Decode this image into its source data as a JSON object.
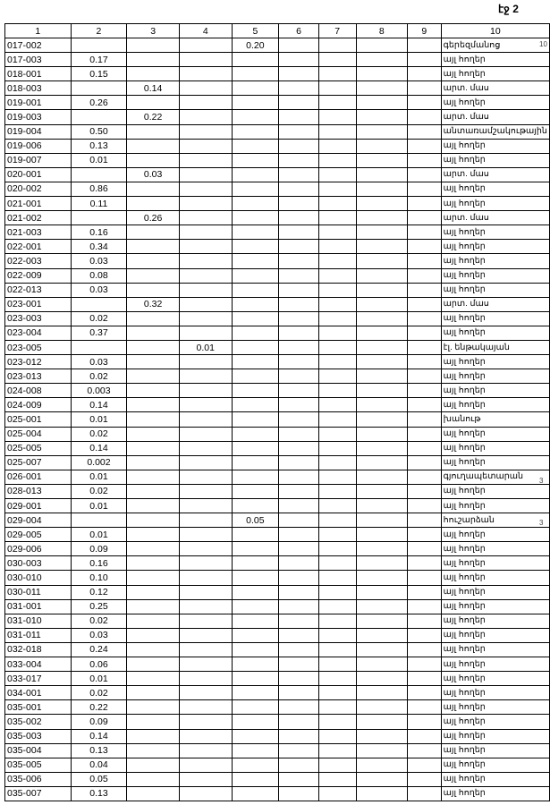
{
  "page_number": "էջ 2",
  "side_marks": [
    "10",
    "3",
    "3"
  ],
  "table": {
    "headers": [
      "1",
      "2",
      "3",
      "4",
      "5",
      "6",
      "7",
      "8",
      "9",
      "10"
    ],
    "rows": [
      [
        "017-002",
        "",
        "",
        "",
        "0.20",
        "",
        "",
        "",
        "",
        "գերեզմանոց"
      ],
      [
        "017-003",
        "0.17",
        "",
        "",
        "",
        "",
        "",
        "",
        "",
        "այլ հողեր"
      ],
      [
        "018-001",
        "0.15",
        "",
        "",
        "",
        "",
        "",
        "",
        "",
        "այլ հողեր"
      ],
      [
        "018-003",
        "",
        "0.14",
        "",
        "",
        "",
        "",
        "",
        "",
        "արտ. մաս"
      ],
      [
        "019-001",
        "0.26",
        "",
        "",
        "",
        "",
        "",
        "",
        "",
        "այլ հողեր"
      ],
      [
        "019-003",
        "",
        "0.22",
        "",
        "",
        "",
        "",
        "",
        "",
        "արտ. մաս"
      ],
      [
        "019-004",
        "0.50",
        "",
        "",
        "",
        "",
        "",
        "",
        "",
        "անտառամշակութային"
      ],
      [
        "019-006",
        "0.13",
        "",
        "",
        "",
        "",
        "",
        "",
        "",
        "այլ հողեր"
      ],
      [
        "019-007",
        "0.01",
        "",
        "",
        "",
        "",
        "",
        "",
        "",
        "այլ հողեր"
      ],
      [
        "020-001",
        "",
        "0.03",
        "",
        "",
        "",
        "",
        "",
        "",
        "արտ. մաս"
      ],
      [
        "020-002",
        "0.86",
        "",
        "",
        "",
        "",
        "",
        "",
        "",
        "այլ հողեր"
      ],
      [
        "021-001",
        "0.11",
        "",
        "",
        "",
        "",
        "",
        "",
        "",
        "այլ հողեր"
      ],
      [
        "021-002",
        "",
        "0.26",
        "",
        "",
        "",
        "",
        "",
        "",
        "արտ. մաս"
      ],
      [
        "021-003",
        "0.16",
        "",
        "",
        "",
        "",
        "",
        "",
        "",
        "այլ հողեր"
      ],
      [
        "022-001",
        "0.34",
        "",
        "",
        "",
        "",
        "",
        "",
        "",
        "այլ հողեր"
      ],
      [
        "022-003",
        "0.03",
        "",
        "",
        "",
        "",
        "",
        "",
        "",
        "այլ հողեր"
      ],
      [
        "022-009",
        "0.08",
        "",
        "",
        "",
        "",
        "",
        "",
        "",
        "այլ հողեր"
      ],
      [
        "022-013",
        "0.03",
        "",
        "",
        "",
        "",
        "",
        "",
        "",
        "այլ հողեր"
      ],
      [
        "023-001",
        "",
        "0.32",
        "",
        "",
        "",
        "",
        "",
        "",
        "արտ. մաս"
      ],
      [
        "023-003",
        "0.02",
        "",
        "",
        "",
        "",
        "",
        "",
        "",
        "այլ հողեր"
      ],
      [
        "023-004",
        "0.37",
        "",
        "",
        "",
        "",
        "",
        "",
        "",
        "այլ հողեր"
      ],
      [
        "023-005",
        "",
        "",
        "0.01",
        "",
        "",
        "",
        "",
        "",
        "էլ. ենթակայան"
      ],
      [
        "023-012",
        "0.03",
        "",
        "",
        "",
        "",
        "",
        "",
        "",
        "այլ հողեր"
      ],
      [
        "023-013",
        "0.02",
        "",
        "",
        "",
        "",
        "",
        "",
        "",
        "այլ հողեր"
      ],
      [
        "024-008",
        "0.003",
        "",
        "",
        "",
        "",
        "",
        "",
        "",
        "այլ հողեր"
      ],
      [
        "024-009",
        "0.14",
        "",
        "",
        "",
        "",
        "",
        "",
        "",
        "այլ հողեր"
      ],
      [
        "025-001",
        "0.01",
        "",
        "",
        "",
        "",
        "",
        "",
        "",
        "խանութ"
      ],
      [
        "025-004",
        "0.02",
        "",
        "",
        "",
        "",
        "",
        "",
        "",
        "այլ հողեր"
      ],
      [
        "025-005",
        "0.14",
        "",
        "",
        "",
        "",
        "",
        "",
        "",
        "այլ հողեր"
      ],
      [
        "025-007",
        "0.002",
        "",
        "",
        "",
        "",
        "",
        "",
        "",
        "այլ հողեր"
      ],
      [
        "026-001",
        "0.01",
        "",
        "",
        "",
        "",
        "",
        "",
        "",
        "գյուղապետարան"
      ],
      [
        "028-013",
        "0.02",
        "",
        "",
        "",
        "",
        "",
        "",
        "",
        "այլ հողեր"
      ],
      [
        "029-001",
        "0.01",
        "",
        "",
        "",
        "",
        "",
        "",
        "",
        "այլ հողեր"
      ],
      [
        "029-004",
        "",
        "",
        "",
        "0.05",
        "",
        "",
        "",
        "",
        "հուշարձան"
      ],
      [
        "029-005",
        "0.01",
        "",
        "",
        "",
        "",
        "",
        "",
        "",
        "այլ հողեր"
      ],
      [
        "029-006",
        "0.09",
        "",
        "",
        "",
        "",
        "",
        "",
        "",
        "այլ հողեր"
      ],
      [
        "030-003",
        "0.16",
        "",
        "",
        "",
        "",
        "",
        "",
        "",
        "այլ հողեր"
      ],
      [
        "030-010",
        "0.10",
        "",
        "",
        "",
        "",
        "",
        "",
        "",
        "այլ հողեր"
      ],
      [
        "030-011",
        "0.12",
        "",
        "",
        "",
        "",
        "",
        "",
        "",
        "այլ հողեր"
      ],
      [
        "031-001",
        "0.25",
        "",
        "",
        "",
        "",
        "",
        "",
        "",
        "այլ հողեր"
      ],
      [
        "031-010",
        "0.02",
        "",
        "",
        "",
        "",
        "",
        "",
        "",
        "այլ հողեր"
      ],
      [
        "031-011",
        "0.03",
        "",
        "",
        "",
        "",
        "",
        "",
        "",
        "այլ հողեր"
      ],
      [
        "032-018",
        "0.24",
        "",
        "",
        "",
        "",
        "",
        "",
        "",
        "այլ հողեր"
      ],
      [
        "033-004",
        "0.06",
        "",
        "",
        "",
        "",
        "",
        "",
        "",
        "այլ հողեր"
      ],
      [
        "033-017",
        "0.01",
        "",
        "",
        "",
        "",
        "",
        "",
        "",
        "այլ հողեր"
      ],
      [
        "034-001",
        "0.02",
        "",
        "",
        "",
        "",
        "",
        "",
        "",
        "այլ հողեր"
      ],
      [
        "035-001",
        "0.22",
        "",
        "",
        "",
        "",
        "",
        "",
        "",
        "այլ հողեր"
      ],
      [
        "035-002",
        "0.09",
        "",
        "",
        "",
        "",
        "",
        "",
        "",
        "այլ հողեր"
      ],
      [
        "035-003",
        "0.14",
        "",
        "",
        "",
        "",
        "",
        "",
        "",
        "այլ հողեր"
      ],
      [
        "035-004",
        "0.13",
        "",
        "",
        "",
        "",
        "",
        "",
        "",
        "այլ հողեր"
      ],
      [
        "035-005",
        "0.04",
        "",
        "",
        "",
        "",
        "",
        "",
        "",
        "այլ հողեր"
      ],
      [
        "035-006",
        "0.05",
        "",
        "",
        "",
        "",
        "",
        "",
        "",
        "այլ հողեր"
      ],
      [
        "035-007",
        "0.13",
        "",
        "",
        "",
        "",
        "",
        "",
        "",
        "այլ հողեր"
      ]
    ]
  }
}
